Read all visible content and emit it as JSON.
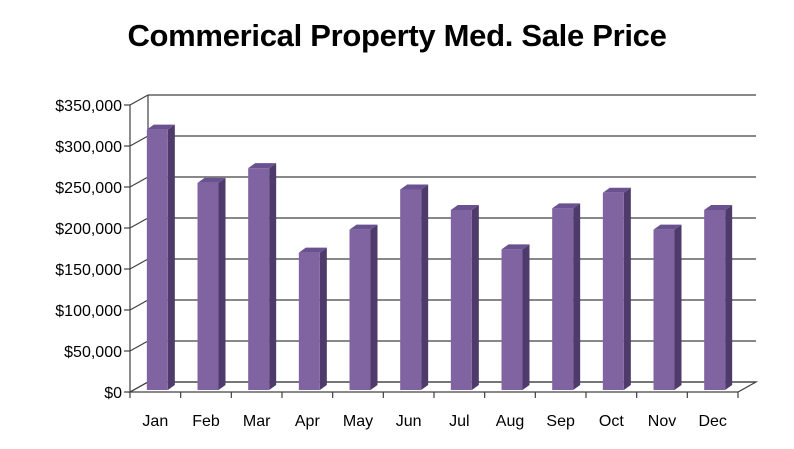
{
  "chart_data": {
    "type": "bar",
    "title": "Commerical Property Med. Sale Price",
    "categories": [
      "Jan",
      "Feb",
      "Mar",
      "Apr",
      "May",
      "Jun",
      "Jul",
      "Aug",
      "Sep",
      "Oct",
      "Nov",
      "Dec"
    ],
    "values": [
      320000,
      255000,
      273000,
      170000,
      198000,
      247000,
      222000,
      174000,
      224000,
      243000,
      198000,
      222000
    ],
    "ylim": [
      0,
      350000
    ],
    "yticks": [
      0,
      50000,
      100000,
      150000,
      200000,
      250000,
      300000,
      350000
    ],
    "ytick_labels": [
      "$0",
      "$50,000",
      "$100,000",
      "$150,000",
      "$200,000",
      "$250,000",
      "$300,000",
      "$350,000"
    ],
    "xlabel": "",
    "ylabel": "",
    "grid": true,
    "style": "3d-column",
    "colors": {
      "bar_front": "#8064a2",
      "bar_side": "#4f3b6b",
      "bar_top": "#6a5290",
      "grid": "#404040"
    }
  }
}
